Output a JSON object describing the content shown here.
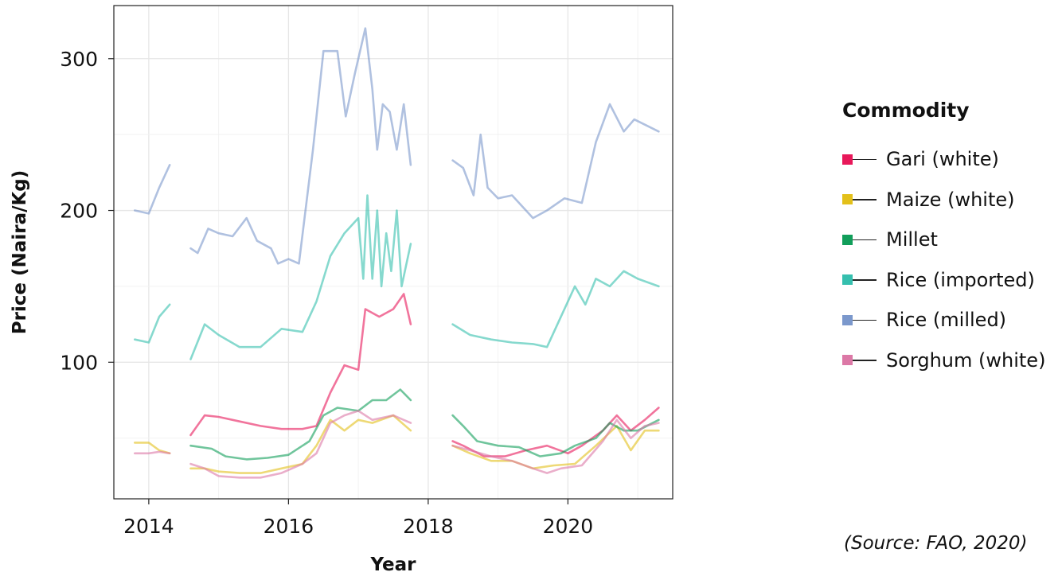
{
  "chart_data": {
    "type": "line",
    "title": "",
    "xlabel": "Year",
    "ylabel": "Price (Naira/Kg)",
    "xlim": [
      2013.5,
      2021.5
    ],
    "ylim": [
      10,
      335
    ],
    "xticks": [
      2014,
      2016,
      2018,
      2020
    ],
    "yticks": [
      100,
      200,
      300
    ],
    "grid": true,
    "legend_title": "Commodity",
    "legend_position": "right",
    "series": [
      {
        "name": "Gari (white)",
        "color": "#e8185a",
        "segments": [
          [
            [
              2014.6,
              52
            ],
            [
              2014.8,
              65
            ],
            [
              2015.0,
              64
            ],
            [
              2015.3,
              61
            ],
            [
              2015.6,
              58
            ],
            [
              2015.9,
              56
            ],
            [
              2016.2,
              56
            ],
            [
              2016.4,
              58
            ],
            [
              2016.6,
              80
            ],
            [
              2016.8,
              98
            ],
            [
              2017.0,
              95
            ],
            [
              2017.1,
              135
            ],
            [
              2017.3,
              130
            ],
            [
              2017.5,
              135
            ],
            [
              2017.65,
              145
            ],
            [
              2017.75,
              125
            ]
          ],
          [
            [
              2018.35,
              48
            ],
            [
              2018.5,
              45
            ],
            [
              2018.8,
              38
            ],
            [
              2019.1,
              38
            ],
            [
              2019.4,
              42
            ],
            [
              2019.7,
              45
            ],
            [
              2020.0,
              40
            ],
            [
              2020.2,
              45
            ],
            [
              2020.5,
              55
            ],
            [
              2020.7,
              65
            ],
            [
              2020.9,
              55
            ],
            [
              2021.1,
              62
            ],
            [
              2021.3,
              70
            ]
          ]
        ]
      },
      {
        "name": "Maize (white)",
        "color": "#e3c01a",
        "segments": [
          [
            [
              2013.8,
              47
            ],
            [
              2014.0,
              47
            ],
            [
              2014.15,
              42
            ],
            [
              2014.3,
              40
            ]
          ],
          [
            [
              2014.6,
              30
            ],
            [
              2014.8,
              30
            ],
            [
              2015.0,
              28
            ],
            [
              2015.3,
              27
            ],
            [
              2015.6,
              27
            ],
            [
              2015.9,
              30
            ],
            [
              2016.2,
              33
            ],
            [
              2016.4,
              45
            ],
            [
              2016.6,
              62
            ],
            [
              2016.8,
              55
            ],
            [
              2017.0,
              62
            ],
            [
              2017.2,
              60
            ],
            [
              2017.5,
              65
            ],
            [
              2017.75,
              55
            ]
          ],
          [
            [
              2018.35,
              45
            ],
            [
              2018.6,
              40
            ],
            [
              2018.9,
              35
            ],
            [
              2019.2,
              35
            ],
            [
              2019.5,
              30
            ],
            [
              2019.8,
              32
            ],
            [
              2020.1,
              33
            ],
            [
              2020.4,
              45
            ],
            [
              2020.7,
              58
            ],
            [
              2020.9,
              42
            ],
            [
              2021.1,
              55
            ],
            [
              2021.3,
              55
            ]
          ]
        ]
      },
      {
        "name": "Millet",
        "color": "#119e5a",
        "segments": [
          [
            [
              2014.6,
              45
            ],
            [
              2014.9,
              43
            ],
            [
              2015.1,
              38
            ],
            [
              2015.4,
              36
            ],
            [
              2015.7,
              37
            ],
            [
              2016.0,
              39
            ],
            [
              2016.3,
              48
            ],
            [
              2016.5,
              65
            ],
            [
              2016.7,
              70
            ],
            [
              2017.0,
              68
            ],
            [
              2017.2,
              75
            ],
            [
              2017.4,
              75
            ],
            [
              2017.6,
              82
            ],
            [
              2017.75,
              75
            ]
          ],
          [
            [
              2018.35,
              65
            ],
            [
              2018.5,
              58
            ],
            [
              2018.7,
              48
            ],
            [
              2019.0,
              45
            ],
            [
              2019.3,
              44
            ],
            [
              2019.6,
              38
            ],
            [
              2019.9,
              40
            ],
            [
              2020.1,
              45
            ],
            [
              2020.4,
              50
            ],
            [
              2020.6,
              60
            ],
            [
              2020.8,
              55
            ],
            [
              2021.0,
              55
            ],
            [
              2021.3,
              62
            ]
          ]
        ]
      },
      {
        "name": "Rice (imported)",
        "color": "#35bfae",
        "segments": [
          [
            [
              2013.8,
              115
            ],
            [
              2014.0,
              113
            ],
            [
              2014.15,
              130
            ],
            [
              2014.3,
              138
            ]
          ],
          [
            [
              2014.6,
              102
            ],
            [
              2014.8,
              125
            ],
            [
              2015.0,
              118
            ],
            [
              2015.3,
              110
            ],
            [
              2015.6,
              110
            ],
            [
              2015.9,
              122
            ],
            [
              2016.2,
              120
            ],
            [
              2016.4,
              140
            ],
            [
              2016.6,
              170
            ],
            [
              2016.8,
              185
            ],
            [
              2017.0,
              195
            ],
            [
              2017.07,
              155
            ],
            [
              2017.13,
              210
            ],
            [
              2017.2,
              155
            ],
            [
              2017.27,
              200
            ],
            [
              2017.33,
              150
            ],
            [
              2017.4,
              185
            ],
            [
              2017.47,
              160
            ],
            [
              2017.55,
              200
            ],
            [
              2017.62,
              150
            ],
            [
              2017.75,
              178
            ]
          ],
          [
            [
              2018.35,
              125
            ],
            [
              2018.6,
              118
            ],
            [
              2018.9,
              115
            ],
            [
              2019.2,
              113
            ],
            [
              2019.5,
              112
            ],
            [
              2019.7,
              110
            ],
            [
              2019.9,
              130
            ],
            [
              2020.1,
              150
            ],
            [
              2020.25,
              138
            ],
            [
              2020.4,
              155
            ],
            [
              2020.6,
              150
            ],
            [
              2020.8,
              160
            ],
            [
              2021.0,
              155
            ],
            [
              2021.3,
              150
            ]
          ]
        ]
      },
      {
        "name": "Rice (milled)",
        "color": "#7b98cc",
        "segments": [
          [
            [
              2013.8,
              200
            ],
            [
              2014.0,
              198
            ],
            [
              2014.15,
              215
            ],
            [
              2014.3,
              230
            ]
          ],
          [
            [
              2014.6,
              175
            ],
            [
              2014.7,
              172
            ],
            [
              2014.85,
              188
            ],
            [
              2015.0,
              185
            ],
            [
              2015.2,
              183
            ],
            [
              2015.4,
              195
            ],
            [
              2015.55,
              180
            ],
            [
              2015.75,
              175
            ],
            [
              2015.85,
              165
            ],
            [
              2016.0,
              168
            ],
            [
              2016.15,
              165
            ],
            [
              2016.35,
              240
            ],
            [
              2016.5,
              305
            ],
            [
              2016.7,
              305
            ],
            [
              2016.82,
              262
            ],
            [
              2016.95,
              290
            ],
            [
              2017.1,
              320
            ],
            [
              2017.2,
              280
            ],
            [
              2017.27,
              240
            ],
            [
              2017.35,
              270
            ],
            [
              2017.45,
              265
            ],
            [
              2017.55,
              240
            ],
            [
              2017.65,
              270
            ],
            [
              2017.75,
              230
            ]
          ],
          [
            [
              2018.35,
              233
            ],
            [
              2018.5,
              228
            ],
            [
              2018.65,
              210
            ],
            [
              2018.75,
              250
            ],
            [
              2018.85,
              215
            ],
            [
              2019.0,
              208
            ],
            [
              2019.2,
              210
            ],
            [
              2019.5,
              195
            ],
            [
              2019.7,
              200
            ],
            [
              2019.95,
              208
            ],
            [
              2020.2,
              205
            ],
            [
              2020.4,
              245
            ],
            [
              2020.6,
              270
            ],
            [
              2020.8,
              252
            ],
            [
              2020.95,
              260
            ],
            [
              2021.3,
              252
            ]
          ]
        ]
      },
      {
        "name": "Sorghum (white)",
        "color": "#dc78a6",
        "segments": [
          [
            [
              2013.8,
              40
            ],
            [
              2014.0,
              40
            ],
            [
              2014.15,
              41
            ],
            [
              2014.3,
              40
            ]
          ],
          [
            [
              2014.6,
              33
            ],
            [
              2014.8,
              30
            ],
            [
              2015.0,
              25
            ],
            [
              2015.3,
              24
            ],
            [
              2015.6,
              24
            ],
            [
              2015.9,
              27
            ],
            [
              2016.2,
              33
            ],
            [
              2016.4,
              40
            ],
            [
              2016.6,
              60
            ],
            [
              2016.8,
              65
            ],
            [
              2017.0,
              68
            ],
            [
              2017.2,
              62
            ],
            [
              2017.5,
              65
            ],
            [
              2017.75,
              60
            ]
          ],
          [
            [
              2018.35,
              45
            ],
            [
              2018.6,
              42
            ],
            [
              2018.9,
              38
            ],
            [
              2019.2,
              35
            ],
            [
              2019.5,
              30
            ],
            [
              2019.7,
              27
            ],
            [
              2019.9,
              30
            ],
            [
              2020.2,
              32
            ],
            [
              2020.5,
              48
            ],
            [
              2020.7,
              62
            ],
            [
              2020.9,
              50
            ],
            [
              2021.1,
              58
            ],
            [
              2021.3,
              60
            ]
          ]
        ]
      }
    ]
  },
  "source_note": "(Source: FAO, 2020)"
}
